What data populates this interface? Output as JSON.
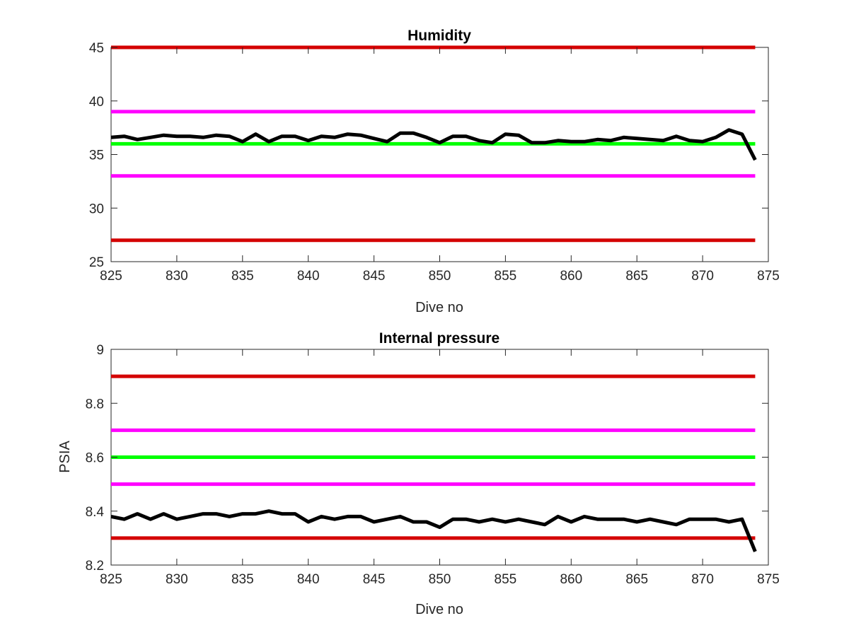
{
  "chart_data": [
    {
      "type": "line",
      "title": "Humidity",
      "xlabel": "Dive no",
      "ylabel": "",
      "xlim": [
        825,
        875
      ],
      "ylim": [
        25,
        45
      ],
      "xticks": [
        "825",
        "830",
        "835",
        "840",
        "845",
        "850",
        "855",
        "860",
        "865",
        "870",
        "875"
      ],
      "yticks": [
        "25",
        "30",
        "35",
        "40",
        "45"
      ],
      "reference_lines": [
        {
          "y": 45,
          "color": "#d40000"
        },
        {
          "y": 39,
          "color": "#ff00ff"
        },
        {
          "y": 36,
          "color": "#00ff00"
        },
        {
          "y": 33,
          "color": "#ff00ff"
        },
        {
          "y": 27,
          "color": "#d40000"
        }
      ],
      "series": [
        {
          "color": "#000000",
          "x": [
            825,
            826,
            827,
            828,
            829,
            830,
            831,
            832,
            833,
            834,
            835,
            836,
            837,
            838,
            839,
            840,
            841,
            842,
            843,
            844,
            845,
            846,
            847,
            848,
            849,
            850,
            851,
            852,
            853,
            854,
            855,
            856,
            857,
            858,
            859,
            860,
            861,
            862,
            863,
            864,
            865,
            866,
            867,
            868,
            869,
            870,
            871,
            872,
            873,
            874
          ],
          "y": [
            36.6,
            36.7,
            36.4,
            36.6,
            36.8,
            36.7,
            36.7,
            36.6,
            36.8,
            36.7,
            36.2,
            36.9,
            36.2,
            36.7,
            36.7,
            36.3,
            36.7,
            36.6,
            36.9,
            36.8,
            36.5,
            36.2,
            37.0,
            37.0,
            36.6,
            36.1,
            36.7,
            36.7,
            36.3,
            36.1,
            36.9,
            36.8,
            36.1,
            36.1,
            36.3,
            36.2,
            36.2,
            36.4,
            36.3,
            36.6,
            36.5,
            36.4,
            36.3,
            36.7,
            36.3,
            36.2,
            36.6,
            37.3,
            36.9,
            34.5
          ]
        }
      ]
    },
    {
      "type": "line",
      "title": "Internal pressure",
      "xlabel": "Dive no",
      "ylabel": "PSIA",
      "xlim": [
        825,
        875
      ],
      "ylim": [
        8.2,
        9
      ],
      "xticks": [
        "825",
        "830",
        "835",
        "840",
        "845",
        "850",
        "855",
        "860",
        "865",
        "870",
        "875"
      ],
      "yticks": [
        "8.2",
        "8.4",
        "8.6",
        "8.8",
        "9"
      ],
      "reference_lines": [
        {
          "y": 8.9,
          "color": "#d40000"
        },
        {
          "y": 8.7,
          "color": "#ff00ff"
        },
        {
          "y": 8.6,
          "color": "#00ff00"
        },
        {
          "y": 8.5,
          "color": "#ff00ff"
        },
        {
          "y": 8.3,
          "color": "#d40000"
        }
      ],
      "series": [
        {
          "color": "#000000",
          "x": [
            825,
            826,
            827,
            828,
            829,
            830,
            831,
            832,
            833,
            834,
            835,
            836,
            837,
            838,
            839,
            840,
            841,
            842,
            843,
            844,
            845,
            846,
            847,
            848,
            849,
            850,
            851,
            852,
            853,
            854,
            855,
            856,
            857,
            858,
            859,
            860,
            861,
            862,
            863,
            864,
            865,
            866,
            867,
            868,
            869,
            870,
            871,
            872,
            873,
            874
          ],
          "y": [
            8.38,
            8.37,
            8.39,
            8.37,
            8.39,
            8.37,
            8.38,
            8.39,
            8.39,
            8.38,
            8.39,
            8.39,
            8.4,
            8.39,
            8.39,
            8.36,
            8.38,
            8.37,
            8.38,
            8.38,
            8.36,
            8.37,
            8.38,
            8.36,
            8.36,
            8.34,
            8.37,
            8.37,
            8.36,
            8.37,
            8.36,
            8.37,
            8.36,
            8.35,
            8.38,
            8.36,
            8.38,
            8.37,
            8.37,
            8.37,
            8.36,
            8.37,
            8.36,
            8.35,
            8.37,
            8.37,
            8.37,
            8.36,
            8.37,
            8.25
          ]
        }
      ]
    }
  ]
}
